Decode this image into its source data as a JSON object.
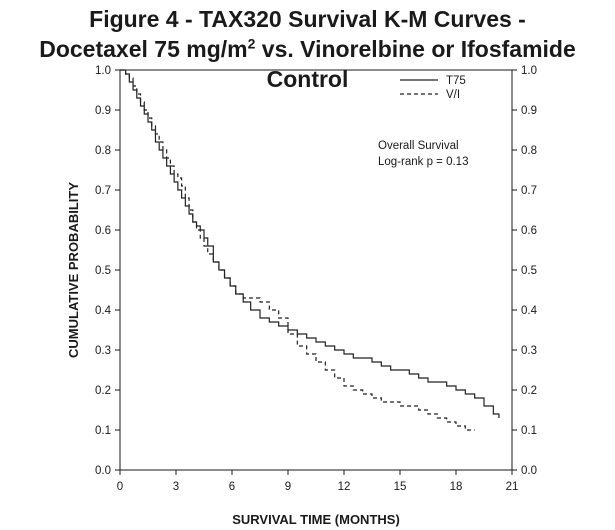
{
  "title": {
    "line1": "Figure 4 - TAX320 Survival K-M Curves -",
    "line2_pre": "Docetaxel 75 mg/m",
    "line2_sup": "2",
    "line2_post": " vs. Vinorelbine or Ifosfamide Control"
  },
  "chart_data": {
    "type": "line",
    "step": true,
    "xlabel": "SURVIVAL TIME (MONTHS)",
    "ylabel": "CUMULATIVE PROBABILITY",
    "xlim": [
      0,
      21
    ],
    "ylim": [
      0.0,
      1.0
    ],
    "xticks": [
      "0",
      "3",
      "6",
      "9",
      "12",
      "15",
      "18",
      "21"
    ],
    "yticks": [
      "0.0",
      "0.1",
      "0.2",
      "0.3",
      "0.4",
      "0.5",
      "0.6",
      "0.7",
      "0.8",
      "0.9",
      "1.0"
    ],
    "right_axis_ticks": true,
    "grid": false,
    "legend_position": "top-right",
    "annotations": [
      "Overall Survival",
      "Log-rank p = 0.13"
    ],
    "series": [
      {
        "name": "T75",
        "line_style": "solid",
        "color": "#222222",
        "x": [
          0,
          0.3,
          0.5,
          0.7,
          0.9,
          1.1,
          1.3,
          1.5,
          1.7,
          1.9,
          2.1,
          2.3,
          2.5,
          2.7,
          2.9,
          3.1,
          3.3,
          3.5,
          3.7,
          3.9,
          4.1,
          4.3,
          4.5,
          4.7,
          5.0,
          5.3,
          5.6,
          5.9,
          6.2,
          6.6,
          7.0,
          7.5,
          8.0,
          8.5,
          9.0,
          9.5,
          10.0,
          10.5,
          11.0,
          11.5,
          12.0,
          12.5,
          13.0,
          13.5,
          14.0,
          14.5,
          15.0,
          15.5,
          16.0,
          16.5,
          17.0,
          17.5,
          18.0,
          18.5,
          19.0,
          19.5,
          20.0,
          20.3
        ],
        "y": [
          1.0,
          0.99,
          0.97,
          0.95,
          0.93,
          0.91,
          0.89,
          0.87,
          0.85,
          0.82,
          0.8,
          0.78,
          0.76,
          0.74,
          0.72,
          0.7,
          0.68,
          0.66,
          0.64,
          0.62,
          0.61,
          0.6,
          0.58,
          0.56,
          0.52,
          0.5,
          0.48,
          0.46,
          0.44,
          0.42,
          0.4,
          0.38,
          0.37,
          0.36,
          0.35,
          0.34,
          0.33,
          0.32,
          0.31,
          0.3,
          0.29,
          0.28,
          0.28,
          0.27,
          0.26,
          0.25,
          0.25,
          0.24,
          0.23,
          0.22,
          0.22,
          0.21,
          0.2,
          0.19,
          0.18,
          0.16,
          0.14,
          0.13
        ]
      },
      {
        "name": "V/I",
        "line_style": "dashed",
        "color": "#222222",
        "x": [
          0,
          0.3,
          0.5,
          0.7,
          0.9,
          1.1,
          1.3,
          1.5,
          1.7,
          1.9,
          2.1,
          2.3,
          2.5,
          2.7,
          2.9,
          3.1,
          3.3,
          3.5,
          3.7,
          3.9,
          4.1,
          4.3,
          4.5,
          4.7,
          5.0,
          5.3,
          5.6,
          5.9,
          6.2,
          6.6,
          7.0,
          7.5,
          8.0,
          8.5,
          9.0,
          9.5,
          10.0,
          10.5,
          11.0,
          11.5,
          12.0,
          12.5,
          13.0,
          13.5,
          14.0,
          14.5,
          15.0,
          15.5,
          16.0,
          16.5,
          17.0,
          17.5,
          18.0,
          18.5,
          19.0
        ],
        "y": [
          1.0,
          0.99,
          0.98,
          0.96,
          0.94,
          0.92,
          0.9,
          0.88,
          0.86,
          0.84,
          0.82,
          0.8,
          0.78,
          0.76,
          0.74,
          0.73,
          0.71,
          0.68,
          0.65,
          0.62,
          0.6,
          0.58,
          0.56,
          0.54,
          0.52,
          0.5,
          0.48,
          0.46,
          0.44,
          0.43,
          0.43,
          0.42,
          0.4,
          0.38,
          0.34,
          0.31,
          0.29,
          0.27,
          0.25,
          0.23,
          0.21,
          0.2,
          0.19,
          0.18,
          0.17,
          0.17,
          0.16,
          0.16,
          0.15,
          0.14,
          0.13,
          0.12,
          0.11,
          0.1,
          0.1
        ]
      }
    ]
  }
}
